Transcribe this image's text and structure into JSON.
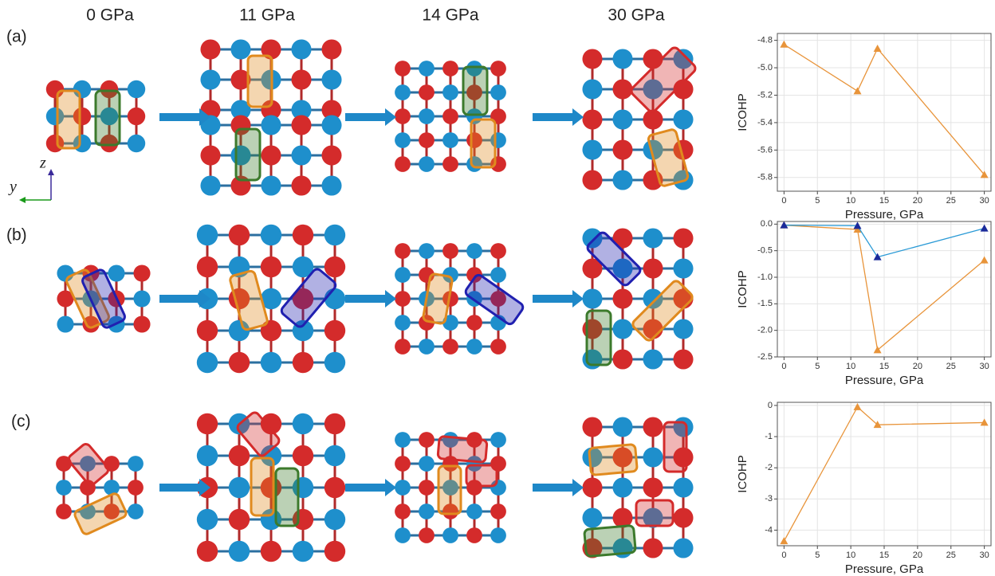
{
  "figure": {
    "columns": [
      "0 GPa",
      "11 GPa",
      "14 GPa",
      "30 GPa"
    ],
    "panels": [
      "(a)",
      "(b)",
      "(c)"
    ],
    "axes": [
      "z",
      "y"
    ]
  },
  "chart_data": [
    {
      "type": "line",
      "ylabel": "ICOHP",
      "xlabel": "Pressure, GPa",
      "x": [
        0,
        11,
        14,
        30
      ],
      "series": [
        {
          "color": "#e8943a",
          "values": [
            -4.83,
            -5.17,
            -4.86,
            -5.78
          ]
        }
      ],
      "xlim": [
        -1,
        31
      ],
      "xticks": [
        0,
        5,
        10,
        15,
        20,
        25,
        30
      ],
      "ylim": [
        -5.9,
        -4.75
      ],
      "yticks": [
        -4.8,
        {
          "value": -5,
          "label": "-5.0"
        },
        -5.2,
        -5.4,
        -5.6,
        -5.8
      ],
      "grid": true
    },
    {
      "type": "line",
      "ylabel": "ICOHP",
      "xlabel": "Pressure, GPa",
      "x": [
        0,
        11,
        14,
        30
      ],
      "series": [
        {
          "color": "#e8943a",
          "values": [
            -0.02,
            -0.1,
            -2.37,
            -0.68
          ]
        },
        {
          "color": "#2a9ad6",
          "values": [
            -0.02,
            -0.03,
            -0.62,
            -0.08
          ]
        }
      ],
      "xlim": [
        -1,
        31
      ],
      "xticks": [
        0,
        5,
        10,
        15,
        20,
        25,
        30
      ],
      "ylim": [
        -2.5,
        0.05
      ],
      "yticks": [
        {
          "value": 0,
          "label": "0.0"
        },
        -0.5,
        {
          "value": -1,
          "label": "-1.0"
        },
        -1.5,
        {
          "value": -2,
          "label": "-2.0"
        },
        -2.5
      ],
      "grid": true
    },
    {
      "type": "line",
      "ylabel": "ICOHP",
      "xlabel": "Pressure, GPa",
      "x": [
        0,
        11,
        14,
        30
      ],
      "series": [
        {
          "color": "#e8943a",
          "values": [
            -4.35,
            -0.05,
            -0.62,
            -0.55
          ]
        }
      ],
      "xlim": [
        -1,
        31
      ],
      "xticks": [
        0,
        5,
        10,
        15,
        20,
        25,
        30
      ],
      "ylim": [
        -4.5,
        0.1
      ],
      "yticks": [
        0,
        -1,
        -2,
        -3,
        -4
      ],
      "grid": true
    }
  ]
}
